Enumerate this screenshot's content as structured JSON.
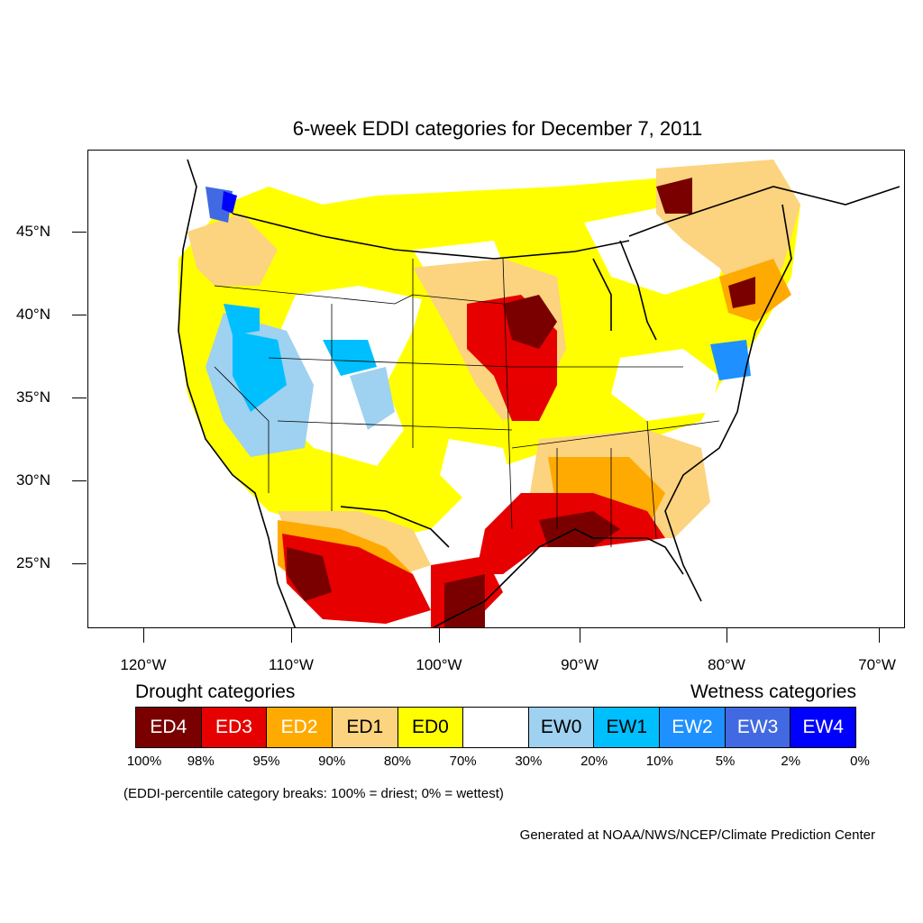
{
  "title": "6-week EDDI categories for December 7, 2011",
  "lat_labels": [
    "45°N",
    "40°N",
    "35°N",
    "30°N",
    "25°N"
  ],
  "lon_labels": [
    "120°W",
    "110°W",
    "100°W",
    "90°W",
    "80°W",
    "70°W"
  ],
  "legend": {
    "drought_heading": "Drought categories",
    "wetness_heading": "Wetness categories",
    "categories": [
      {
        "label": "ED4",
        "color": "#7a0000",
        "text_color": "#ffffff"
      },
      {
        "label": "ED3",
        "color": "#e60000",
        "text_color": "#ffffff"
      },
      {
        "label": "ED2",
        "color": "#ffaa00",
        "text_color": "#ffffff"
      },
      {
        "label": "ED1",
        "color": "#fcd37f",
        "text_color": "#000000"
      },
      {
        "label": "ED0",
        "color": "#ffff00",
        "text_color": "#000000"
      },
      {
        "label": "",
        "color": "#ffffff",
        "text_color": "#000000"
      },
      {
        "label": "EW0",
        "color": "#9fd1f0",
        "text_color": "#000000"
      },
      {
        "label": "EW1",
        "color": "#00bfff",
        "text_color": "#000000"
      },
      {
        "label": "EW2",
        "color": "#1e90ff",
        "text_color": "#ffffff"
      },
      {
        "label": "EW3",
        "color": "#4169e1",
        "text_color": "#ffffff"
      },
      {
        "label": "EW4",
        "color": "#0000ff",
        "text_color": "#ffffff"
      }
    ],
    "percentiles": [
      "100%",
      "98%",
      "95%",
      "90%",
      "80%",
      "70%",
      "30%",
      "20%",
      "10%",
      "5%",
      "2%",
      "0%"
    ]
  },
  "note": "(EDDI-percentile category breaks: 100% = driest; 0% = wettest)",
  "credit": "Generated at NOAA/NWS/NCEP/Climate Prediction Center"
}
